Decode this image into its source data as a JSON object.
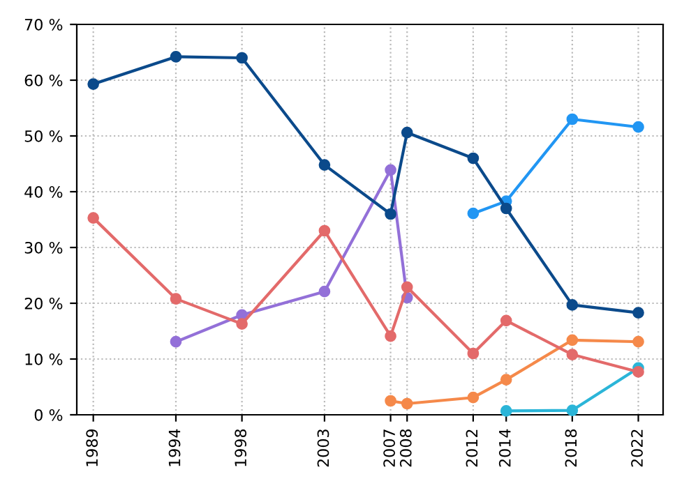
{
  "chart_data": {
    "type": "line",
    "marker": "circle",
    "line_style": "solid",
    "grid": true,
    "legend": false,
    "xlim": [
      1988,
      2023.5
    ],
    "xticks": [
      1989,
      1994,
      1998,
      2003,
      2007,
      2008,
      2012,
      2014,
      2018,
      2022
    ],
    "ylim": [
      0,
      70
    ],
    "yticks": [
      {
        "value": 0,
        "label": "0 %"
      },
      {
        "value": 10,
        "label": "10 %"
      },
      {
        "value": 20,
        "label": "20 %"
      },
      {
        "value": 30,
        "label": "30 %"
      },
      {
        "value": 40,
        "label": "40 %"
      },
      {
        "value": 50,
        "label": "50 %"
      },
      {
        "value": 60,
        "label": "60 %"
      },
      {
        "value": 70,
        "label": "70 %"
      }
    ],
    "series": [
      {
        "color": "#0b4a8b",
        "x": [
          1989,
          1994,
          1998,
          2003,
          2007,
          2008,
          2012,
          2014,
          2018,
          2022
        ],
        "values": [
          59.3,
          64.2,
          64.0,
          44.8,
          36.0,
          50.6,
          46.0,
          37.0,
          19.7,
          18.3
        ]
      },
      {
        "color": "#e36a6a",
        "x": [
          1989,
          1994,
          1998,
          2003,
          2007,
          2008,
          2012,
          2014,
          2018,
          2022
        ],
        "values": [
          35.3,
          20.8,
          16.3,
          33.0,
          14.1,
          22.9,
          11.0,
          16.9,
          10.8,
          7.7
        ]
      },
      {
        "color": "#9370d8",
        "x": [
          1994,
          1998,
          2003,
          2007,
          2008
        ],
        "values": [
          13.1,
          17.9,
          22.1,
          43.9,
          21.0
        ]
      },
      {
        "color": "#2196f3",
        "x": [
          2012,
          2014,
          2018,
          2022
        ],
        "values": [
          36.1,
          38.3,
          53.0,
          51.6
        ]
      },
      {
        "color": "#f5894a",
        "x": [
          2007,
          2008,
          2012,
          2014,
          2018,
          2022
        ],
        "values": [
          2.5,
          2.0,
          3.1,
          6.3,
          13.4,
          13.1
        ]
      },
      {
        "color": "#2bb5d8",
        "x": [
          2014,
          2018,
          2022
        ],
        "values": [
          0.7,
          0.8,
          8.4
        ]
      }
    ]
  }
}
